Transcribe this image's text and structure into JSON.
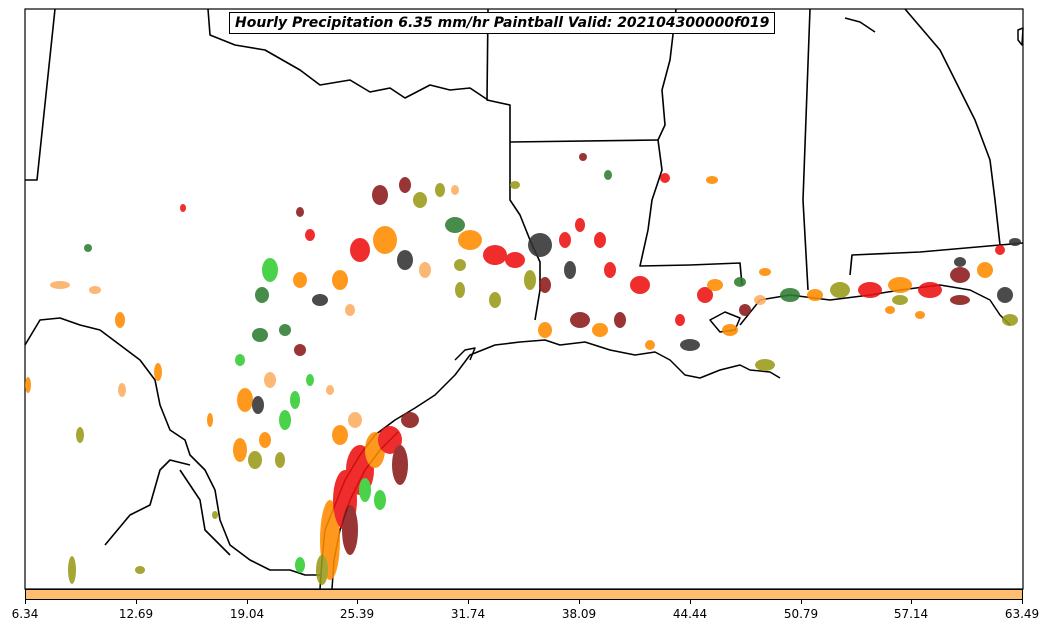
{
  "title": "Hourly Precipitation 6.35 mm/hr Paintball Valid: 202104300000f019",
  "colorbar": {
    "color": "#fdbf6f",
    "ticks": [
      "6.34",
      "12.69",
      "19.04",
      "25.39",
      "31.74",
      "38.09",
      "44.44",
      "50.79",
      "57.14",
      "63.49"
    ]
  },
  "colors": {
    "border": "#000000",
    "red": "#ee1111",
    "darkred": "#8b1a1a",
    "orange": "#ff8c00",
    "lightorange": "#fdae61",
    "olive": "#9a9a1a",
    "green": "#33cc33",
    "darkgreen": "#2e7d32",
    "darkgray": "#333333"
  },
  "map_icons": [
    "state-borders-icon",
    "coastline-icon",
    "precipitation-blob-icon"
  ]
}
